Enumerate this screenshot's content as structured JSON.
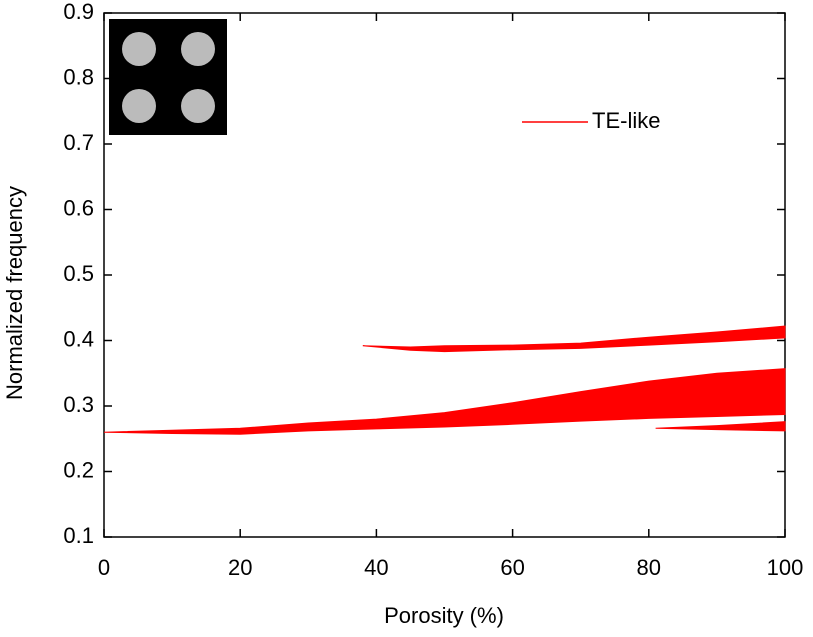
{
  "chart_data": {
    "type": "range-area",
    "xlabel": "Porosity (%)",
    "ylabel": "Normalized frequency",
    "xlim": [
      0,
      100
    ],
    "xticks": [
      0,
      20,
      40,
      60,
      80,
      100
    ],
    "ylim": [
      0.1,
      0.9
    ],
    "yticks": [
      0.1,
      0.2,
      0.3,
      0.4,
      0.5,
      0.6,
      0.7,
      0.8,
      0.9
    ],
    "legend": "upper right",
    "series": [
      {
        "name": "TE-like",
        "color": "#ff0000",
        "bands": [
          {
            "x": [
              0,
              10,
              20,
              30,
              40,
              50,
              60,
              70,
              80,
              90,
              100
            ],
            "lower": [
              0.26,
              0.258,
              0.257,
              0.262,
              0.265,
              0.268,
              0.272,
              0.277,
              0.281,
              0.284,
              0.287
            ],
            "upper": [
              0.26,
              0.263,
              0.266,
              0.274,
              0.28,
              0.29,
              0.305,
              0.322,
              0.338,
              0.35,
              0.357
            ]
          },
          {
            "x": [
              38,
              45,
              50,
              60,
              70,
              80,
              90,
              100
            ],
            "lower": [
              0.392,
              0.385,
              0.383,
              0.386,
              0.388,
              0.393,
              0.398,
              0.404
            ],
            "upper": [
              0.392,
              0.39,
              0.392,
              0.393,
              0.396,
              0.405,
              0.413,
              0.422
            ]
          },
          {
            "x": [
              81,
              90,
              100
            ],
            "lower": [
              0.266,
              0.264,
              0.262
            ],
            "upper": [
              0.266,
              0.27,
              0.276
            ]
          }
        ]
      }
    ]
  }
}
